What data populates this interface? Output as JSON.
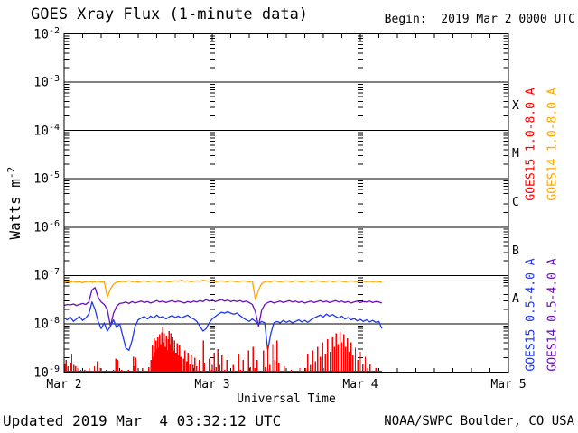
{
  "header": {
    "title": "GOES Xray Flux (1-minute data)",
    "begin_label": "Begin:  2019 Mar 2 0000 UTC"
  },
  "footer": {
    "updated": "Updated 2019 Mar  4 03:32:12 UTC",
    "credit": "NOAA/SWPC Boulder, CO USA"
  },
  "axes": {
    "xlabel": "Universal Time",
    "ylabel_base": "Watts m",
    "ylabel_exp": "-2",
    "y_tick_base": "10",
    "y_exponents": [
      -2,
      -3,
      -4,
      -5,
      -6,
      -7,
      -8,
      -9
    ],
    "x_tick_labels": [
      "Mar 2",
      "Mar 3",
      "Mar 4",
      "Mar 5"
    ],
    "x_tick_hours": [
      0,
      24,
      48,
      72
    ],
    "class_letters": [
      {
        "label": "X",
        "log_center": -3.5
      },
      {
        "label": "M",
        "log_center": -4.5
      },
      {
        "label": "C",
        "log_center": -5.5
      },
      {
        "label": "B",
        "log_center": -6.5
      },
      {
        "label": "A",
        "log_center": -7.5
      }
    ]
  },
  "legend": [
    {
      "text": "GOES15 1.0-8.0 A",
      "color": "#ff0000"
    },
    {
      "text": "GOES14 1.0-8.0 A",
      "color": "#ffa500"
    },
    {
      "text": "GOES15 0.5-4.0 A",
      "color": "#2038f0"
    },
    {
      "text": "GOES14 0.5-4.0 A",
      "color": "#6a0fc0"
    }
  ],
  "chart_data": {
    "type": "line",
    "title": "GOES Xray Flux (1-minute data)",
    "xlabel": "Universal Time",
    "ylabel": "Watts m^-2",
    "x_axis": {
      "start_label": "2019 Mar 2 0000 UTC",
      "range_hours": [
        0,
        72
      ],
      "day_labels": [
        "Mar 2",
        "Mar 3",
        "Mar 4",
        "Mar 5"
      ],
      "minor_tick_hours": 3
    },
    "y_axis": {
      "scale": "log",
      "log_range": [
        -9,
        -2
      ],
      "grid_decades": true
    },
    "data_end_hour": 51.53,
    "series": [
      {
        "name": "GOES14 1.0-8.0 A",
        "color": "#ffa500",
        "style": "line",
        "t_start": 0,
        "t_step": 0.5,
        "log_values": [
          -7.15,
          -7.13,
          -7.14,
          -7.12,
          -7.14,
          -7.13,
          -7.15,
          -7.13,
          -7.12,
          -7.14,
          -7.13,
          -7.12,
          -7.14,
          -7.13,
          -7.45,
          -7.28,
          -7.18,
          -7.14,
          -7.13,
          -7.12,
          -7.13,
          -7.11,
          -7.13,
          -7.12,
          -7.14,
          -7.12,
          -7.11,
          -7.13,
          -7.12,
          -7.11,
          -7.12,
          -7.13,
          -7.11,
          -7.12,
          -7.13,
          -7.12,
          -7.11,
          -7.12,
          -7.1,
          -7.12,
          -7.11,
          -7.13,
          -7.12,
          -7.11,
          -7.12,
          -7.1,
          -7.11,
          -7.12,
          -7.11,
          -7.13,
          -7.12,
          -7.11,
          -7.12,
          -7.13,
          -7.11,
          -7.12,
          -7.13,
          -7.12,
          -7.11,
          -7.12,
          -7.13,
          -7.12,
          -7.5,
          -7.3,
          -7.17,
          -7.13,
          -7.12,
          -7.13,
          -7.11,
          -7.12,
          -7.13,
          -7.12,
          -7.11,
          -7.12,
          -7.13,
          -7.11,
          -7.12,
          -7.13,
          -7.12,
          -7.11,
          -7.13,
          -7.12,
          -7.11,
          -7.12,
          -7.13,
          -7.12,
          -7.11,
          -7.13,
          -7.12,
          -7.11,
          -7.12,
          -7.13,
          -7.12,
          -7.11,
          -7.12,
          -7.13,
          -7.11,
          -7.12,
          -7.13,
          -7.12,
          -7.13,
          -7.12,
          -7.13,
          -7.14
        ]
      },
      {
        "name": "GOES14 0.5-4.0 A",
        "color": "#6a0fc0",
        "style": "line",
        "t_start": 0,
        "t_step": 0.5,
        "log_values": [
          -7.62,
          -7.6,
          -7.61,
          -7.59,
          -7.62,
          -7.6,
          -7.58,
          -7.6,
          -7.55,
          -7.3,
          -7.25,
          -7.45,
          -7.55,
          -7.6,
          -7.7,
          -8.05,
          -7.78,
          -7.64,
          -7.58,
          -7.57,
          -7.55,
          -7.58,
          -7.54,
          -7.57,
          -7.55,
          -7.53,
          -7.56,
          -7.54,
          -7.57,
          -7.55,
          -7.52,
          -7.55,
          -7.53,
          -7.56,
          -7.54,
          -7.52,
          -7.55,
          -7.53,
          -7.55,
          -7.57,
          -7.54,
          -7.56,
          -7.53,
          -7.55,
          -7.52,
          -7.54,
          -7.5,
          -7.53,
          -7.51,
          -7.54,
          -7.52,
          -7.5,
          -7.53,
          -7.51,
          -7.54,
          -7.52,
          -7.54,
          -7.52,
          -7.55,
          -7.53,
          -7.56,
          -7.6,
          -7.75,
          -8.05,
          -7.72,
          -7.6,
          -7.56,
          -7.54,
          -7.57,
          -7.55,
          -7.53,
          -7.56,
          -7.54,
          -7.52,
          -7.55,
          -7.53,
          -7.56,
          -7.54,
          -7.57,
          -7.55,
          -7.53,
          -7.56,
          -7.54,
          -7.52,
          -7.55,
          -7.53,
          -7.56,
          -7.54,
          -7.52,
          -7.55,
          -7.53,
          -7.56,
          -7.54,
          -7.57,
          -7.55,
          -7.53,
          -7.56,
          -7.54,
          -7.55,
          -7.53,
          -7.56,
          -7.54,
          -7.55,
          -7.57
        ]
      },
      {
        "name": "GOES15 0.5-4.0 A",
        "color": "#2038f0",
        "style": "line",
        "t_start": 0,
        "t_step": 0.5,
        "log_values": [
          -7.88,
          -7.92,
          -7.86,
          -7.95,
          -7.9,
          -7.85,
          -7.93,
          -7.88,
          -7.8,
          -7.55,
          -7.7,
          -7.95,
          -8.1,
          -7.98,
          -8.15,
          -8.05,
          -7.92,
          -8.08,
          -8.0,
          -8.25,
          -8.5,
          -8.55,
          -8.35,
          -8.05,
          -7.92,
          -7.88,
          -7.85,
          -7.9,
          -7.84,
          -7.88,
          -7.82,
          -7.87,
          -7.85,
          -7.9,
          -7.86,
          -7.83,
          -7.87,
          -7.84,
          -7.88,
          -7.85,
          -7.82,
          -7.87,
          -7.9,
          -7.95,
          -8.05,
          -8.15,
          -8.1,
          -7.98,
          -7.9,
          -7.85,
          -7.8,
          -7.76,
          -7.78,
          -7.75,
          -7.78,
          -7.8,
          -7.78,
          -7.83,
          -7.88,
          -7.92,
          -7.95,
          -7.9,
          -7.95,
          -8.0,
          -7.95,
          -7.98,
          -8.55,
          -8.2,
          -7.98,
          -7.95,
          -7.98,
          -7.93,
          -7.97,
          -7.94,
          -7.98,
          -7.95,
          -7.92,
          -7.96,
          -7.93,
          -7.97,
          -7.92,
          -7.88,
          -7.85,
          -7.82,
          -7.86,
          -7.8,
          -7.84,
          -7.81,
          -7.85,
          -7.88,
          -7.84,
          -7.9,
          -7.87,
          -7.92,
          -7.89,
          -7.94,
          -7.91,
          -7.95,
          -7.92,
          -7.96,
          -7.93,
          -7.97,
          -7.95,
          -8.1
        ]
      },
      {
        "name": "GOES15 1.0-8.0 A",
        "color": "#ff0000",
        "style": "spikes",
        "baseline_log": -9.1,
        "points": [
          [
            0.1,
            -8.82
          ],
          [
            0.2,
            -9.02
          ],
          [
            0.35,
            -8.75
          ],
          [
            0.5,
            -9.0
          ],
          [
            0.65,
            -8.88
          ],
          [
            0.8,
            -9.02
          ],
          [
            0.95,
            -8.9
          ],
          [
            1.1,
            -8.8
          ],
          [
            1.25,
            -8.62
          ],
          [
            1.4,
            -8.98
          ],
          [
            1.55,
            -8.85
          ],
          [
            1.7,
            -9.02
          ],
          [
            1.85,
            -8.88
          ],
          [
            2.0,
            -9.05
          ],
          [
            2.2,
            -8.92
          ],
          [
            2.45,
            -9.05
          ],
          [
            2.7,
            -8.95
          ],
          [
            3.0,
            -9.08
          ],
          [
            3.3,
            -8.95
          ],
          [
            3.7,
            -9.08
          ],
          [
            4.1,
            -8.92
          ],
          [
            4.5,
            -9.05
          ],
          [
            4.9,
            -8.88
          ],
          [
            5.1,
            -9.02
          ],
          [
            5.4,
            -8.78
          ],
          [
            5.6,
            -9.0
          ],
          [
            5.9,
            -8.92
          ],
          [
            6.3,
            -9.05
          ],
          [
            6.8,
            -8.95
          ],
          [
            7.4,
            -9.05
          ],
          [
            8.0,
            -8.95
          ],
          [
            8.35,
            -8.72
          ],
          [
            8.5,
            -8.92
          ],
          [
            8.65,
            -8.75
          ],
          [
            8.85,
            -9.0
          ],
          [
            9.3,
            -8.95
          ],
          [
            9.8,
            -9.05
          ],
          [
            10.4,
            -8.95
          ],
          [
            10.9,
            -9.02
          ],
          [
            11.25,
            -8.68
          ],
          [
            11.4,
            -8.88
          ],
          [
            11.6,
            -8.7
          ],
          [
            11.8,
            -8.98
          ],
          [
            12.2,
            -9.02
          ],
          [
            12.7,
            -8.92
          ],
          [
            13.2,
            -9.02
          ],
          [
            13.7,
            -8.9
          ],
          [
            14.1,
            -8.75
          ],
          [
            14.3,
            -8.45
          ],
          [
            14.45,
            -8.68
          ],
          [
            14.6,
            -8.3
          ],
          [
            14.75,
            -8.58
          ],
          [
            14.9,
            -8.35
          ],
          [
            15.05,
            -8.52
          ],
          [
            15.2,
            -8.28
          ],
          [
            15.35,
            -8.5
          ],
          [
            15.5,
            -8.22
          ],
          [
            15.65,
            -8.42
          ],
          [
            15.8,
            -8.18
          ],
          [
            15.95,
            -8.06
          ],
          [
            16.1,
            -8.38
          ],
          [
            16.25,
            -8.2
          ],
          [
            16.4,
            -8.48
          ],
          [
            16.55,
            -8.25
          ],
          [
            16.7,
            -8.55
          ],
          [
            16.85,
            -8.32
          ],
          [
            17.0,
            -8.15
          ],
          [
            17.15,
            -8.42
          ],
          [
            17.3,
            -8.2
          ],
          [
            17.45,
            -8.52
          ],
          [
            17.6,
            -8.28
          ],
          [
            17.75,
            -8.55
          ],
          [
            17.9,
            -8.35
          ],
          [
            18.1,
            -8.6
          ],
          [
            18.3,
            -8.4
          ],
          [
            18.5,
            -8.65
          ],
          [
            18.7,
            -8.45
          ],
          [
            18.9,
            -8.68
          ],
          [
            19.1,
            -8.5
          ],
          [
            19.35,
            -8.72
          ],
          [
            19.6,
            -8.55
          ],
          [
            19.85,
            -8.78
          ],
          [
            20.1,
            -8.6
          ],
          [
            20.35,
            -8.82
          ],
          [
            20.6,
            -8.65
          ],
          [
            20.9,
            -8.85
          ],
          [
            21.2,
            -8.7
          ],
          [
            21.5,
            -8.88
          ],
          [
            21.9,
            -8.75
          ],
          [
            22.3,
            -8.98
          ],
          [
            22.6,
            -8.35
          ],
          [
            22.75,
            -8.8
          ],
          [
            23.1,
            -8.98
          ],
          [
            23.5,
            -8.72
          ],
          [
            23.9,
            -8.95
          ],
          [
            24.3,
            -8.6
          ],
          [
            24.6,
            -8.9
          ],
          [
            24.9,
            -8.52
          ],
          [
            25.2,
            -8.85
          ],
          [
            25.6,
            -8.65
          ],
          [
            26.0,
            -8.95
          ],
          [
            26.4,
            -8.75
          ],
          [
            26.9,
            -9.02
          ],
          [
            27.4,
            -8.85
          ],
          [
            27.9,
            -9.02
          ],
          [
            28.3,
            -8.62
          ],
          [
            28.6,
            -8.95
          ],
          [
            29.0,
            -8.75
          ],
          [
            29.4,
            -9.0
          ],
          [
            29.9,
            -8.55
          ],
          [
            30.2,
            -8.9
          ],
          [
            30.6,
            -8.48
          ],
          [
            30.9,
            -8.92
          ],
          [
            31.3,
            -8.75
          ],
          [
            31.8,
            -9.0
          ],
          [
            32.3,
            -8.55
          ],
          [
            32.6,
            -8.9
          ],
          [
            33.0,
            -8.45
          ],
          [
            33.3,
            -8.85
          ],
          [
            33.8,
            -8.42
          ],
          [
            34.1,
            -8.75
          ],
          [
            34.5,
            -8.35
          ],
          [
            34.8,
            -8.8
          ],
          [
            35.2,
            -8.98
          ],
          [
            35.7,
            -8.88
          ],
          [
            36.2,
            -9.02
          ],
          [
            36.8,
            -8.95
          ],
          [
            37.5,
            -9.05
          ],
          [
            38.2,
            -8.92
          ],
          [
            38.7,
            -8.72
          ],
          [
            39.1,
            -8.92
          ],
          [
            39.5,
            -8.62
          ],
          [
            39.9,
            -8.85
          ],
          [
            40.3,
            -8.55
          ],
          [
            40.7,
            -8.78
          ],
          [
            41.1,
            -8.48
          ],
          [
            41.5,
            -8.68
          ],
          [
            41.9,
            -8.38
          ],
          [
            42.3,
            -8.62
          ],
          [
            42.7,
            -8.32
          ],
          [
            43.1,
            -8.58
          ],
          [
            43.5,
            -8.28
          ],
          [
            43.8,
            -8.48
          ],
          [
            44.1,
            -8.2
          ],
          [
            44.4,
            -8.42
          ],
          [
            44.7,
            -8.15
          ],
          [
            45.0,
            -8.38
          ],
          [
            45.3,
            -8.22
          ],
          [
            45.6,
            -8.48
          ],
          [
            45.9,
            -8.3
          ],
          [
            46.2,
            -8.58
          ],
          [
            46.5,
            -8.38
          ],
          [
            46.8,
            -8.65
          ],
          [
            47.2,
            -8.5
          ],
          [
            47.6,
            -8.75
          ],
          [
            48.0,
            -8.58
          ],
          [
            48.4,
            -8.82
          ],
          [
            48.8,
            -8.68
          ],
          [
            49.2,
            -8.92
          ],
          [
            49.6,
            -8.82
          ],
          [
            50.0,
            -9.0
          ],
          [
            50.5,
            -8.92
          ],
          [
            51.0,
            -9.05
          ],
          [
            51.4,
            -8.98
          ]
        ]
      }
    ]
  }
}
